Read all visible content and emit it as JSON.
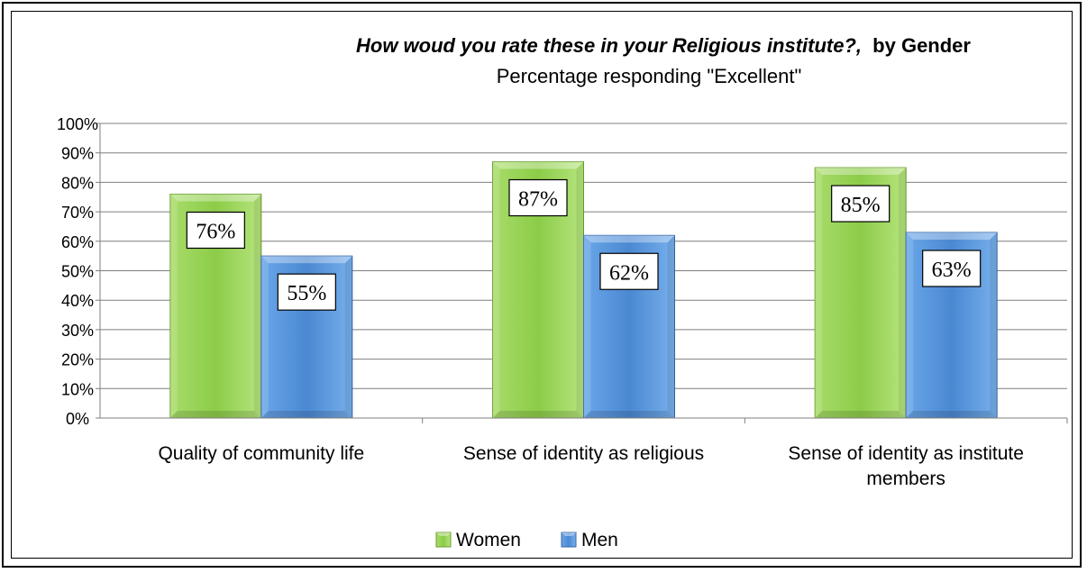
{
  "chart_data": {
    "type": "bar",
    "title_main": "How woud you rate these in your Religious institute?,",
    "title_suffix": "by Gender",
    "subtitle": "Percentage responding \"Excellent\"",
    "categories": [
      [
        "Quality of community life"
      ],
      [
        "Sense of identity as religious"
      ],
      [
        "Sense of identity as institute",
        "members"
      ]
    ],
    "series": [
      {
        "name": "Women",
        "values": [
          76,
          87,
          85
        ],
        "labels": [
          "76%",
          "87%",
          "85%"
        ],
        "color": "#92d050"
      },
      {
        "name": "Men",
        "values": [
          55,
          62,
          63
        ],
        "labels": [
          "55%",
          "62%",
          "63%"
        ],
        "color": "#4f8fd8"
      }
    ],
    "ylim": [
      0,
      100
    ],
    "yticks": [
      "0%",
      "10%",
      "20%",
      "30%",
      "40%",
      "50%",
      "60%",
      "70%",
      "80%",
      "90%",
      "100%"
    ],
    "grid": true,
    "legend_position": "bottom"
  }
}
